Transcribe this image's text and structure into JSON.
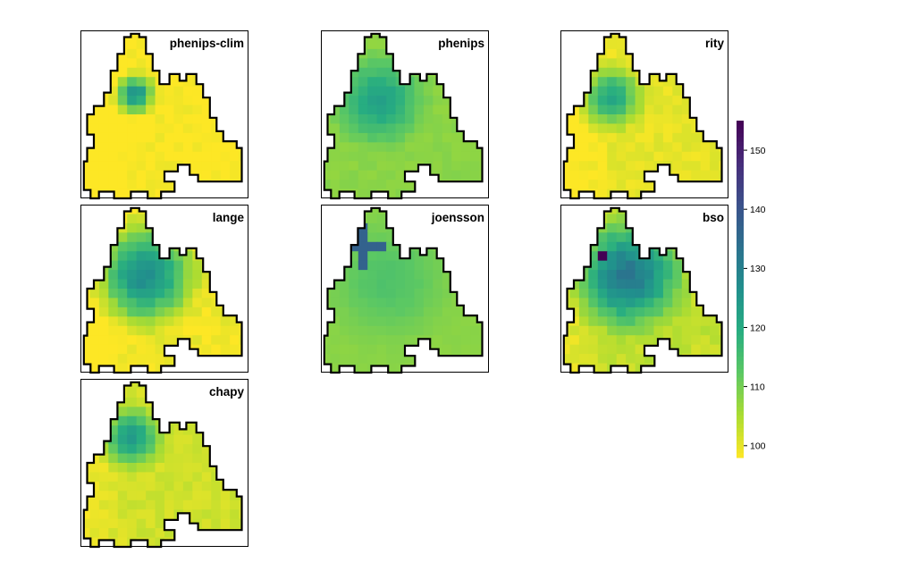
{
  "chart_data": {
    "type": "heatmap",
    "title": "",
    "colormap": "viridis (reversed: low = yellow, high = dark purple)",
    "color_range": [
      98,
      155
    ],
    "grid_size": [
      18,
      18
    ],
    "panels": [
      {
        "name": "phenips-clim",
        "low": 98,
        "high": 126,
        "core": [
          0.32,
          0.38
        ],
        "radius": 0.17,
        "west_gradient": 0.9,
        "extras": []
      },
      {
        "name": "phenips",
        "low": 108,
        "high": 122,
        "core": [
          0.35,
          0.42
        ],
        "radius": 0.36,
        "west_gradient": 0.0,
        "extras": []
      },
      {
        "name": "rity",
        "low": 100,
        "high": 121,
        "core": [
          0.3,
          0.4
        ],
        "radius": 0.26,
        "west_gradient": 0.6,
        "extras": []
      },
      {
        "name": "lange",
        "low": 99,
        "high": 127,
        "core": [
          0.38,
          0.42
        ],
        "radius": 0.42,
        "west_gradient": 0.7,
        "extras": []
      },
      {
        "name": "joensson",
        "low": 108,
        "high": 114,
        "core": [
          0.4,
          0.45
        ],
        "radius": 0.5,
        "west_gradient": 0.0,
        "extras": [
          {
            "shape": "cross",
            "value": 137,
            "cell": [
              4,
              4
            ]
          }
        ]
      },
      {
        "name": "bso",
        "low": 103,
        "high": 132,
        "core": [
          0.4,
          0.42
        ],
        "radius": 0.45,
        "west_gradient": 0.5,
        "extras": [
          {
            "shape": "cell",
            "value": 155,
            "cell": [
              5,
              4
            ]
          }
        ]
      },
      {
        "name": "chapy",
        "low": 102,
        "high": 124,
        "core": [
          0.3,
          0.35
        ],
        "radius": 0.25,
        "west_gradient": 0.5,
        "extras": []
      }
    ],
    "colorbar": {
      "ticks": [
        100,
        110,
        120,
        130,
        140,
        150
      ],
      "tick_labels": [
        "100",
        "110",
        "120",
        "130",
        "140",
        "150"
      ],
      "min": 98,
      "max": 155
    }
  }
}
